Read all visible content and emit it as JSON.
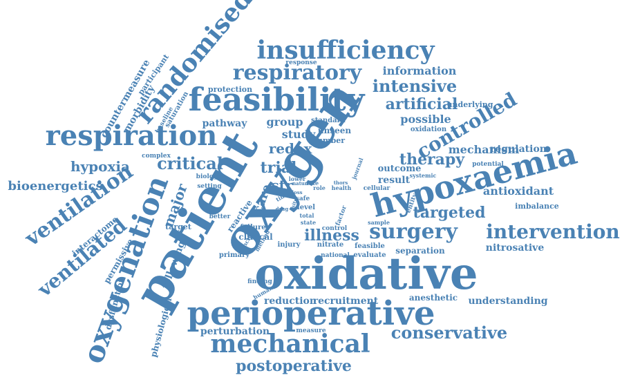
{
  "word_cloud": {
    "color": "#4a82b4",
    "words": [
      "oxidative",
      "oxygen",
      "patient",
      "perioperative",
      "hypoxaemia",
      "oxygenation",
      "feasibility",
      "respiration",
      "mechanical",
      "randomised",
      "insufficiency",
      "respiratory",
      "controlled",
      "surgery",
      "intervention",
      "ventilation",
      "ventilated",
      "critical",
      "conservative",
      "postoperative",
      "intensive",
      "artificial",
      "targeted",
      "hypoxia",
      "bioenergetics",
      "therapy",
      "information",
      "trial",
      "redox",
      "major",
      "illness",
      "care",
      "study",
      "str",
      "possible",
      "mechanism",
      "antioxidant",
      "understanding",
      "regulation",
      "group",
      "countermeasure",
      "morbidity",
      "pathway",
      "reduction",
      "recruitment",
      "nitrosative",
      "perturbation",
      "following",
      "physiological",
      "permissive",
      "dysfunction",
      "interactome",
      "outcome",
      "result",
      "separation",
      "anesthetic",
      "protection",
      "imbalance",
      "underlying",
      "unseen",
      "number",
      "standard",
      "oxidation",
      "participant",
      "saturation",
      "baseline",
      "complex",
      "biology",
      "setting",
      "target",
      "better",
      "reactive",
      "failure",
      "clinical",
      "injury",
      "primary",
      "national",
      "finding",
      "human",
      "evaluate",
      "feasible",
      "nitrate",
      "control",
      "sample",
      "level",
      "total",
      "state",
      "factor",
      "safe",
      "time",
      "function",
      "method",
      "lower",
      "nature",
      "rate",
      "role",
      "journal",
      "cellular",
      "health",
      "systemic",
      "potential",
      "response",
      "entity",
      "measure",
      "thors",
      "drug",
      "loss",
      "sits"
    ]
  }
}
